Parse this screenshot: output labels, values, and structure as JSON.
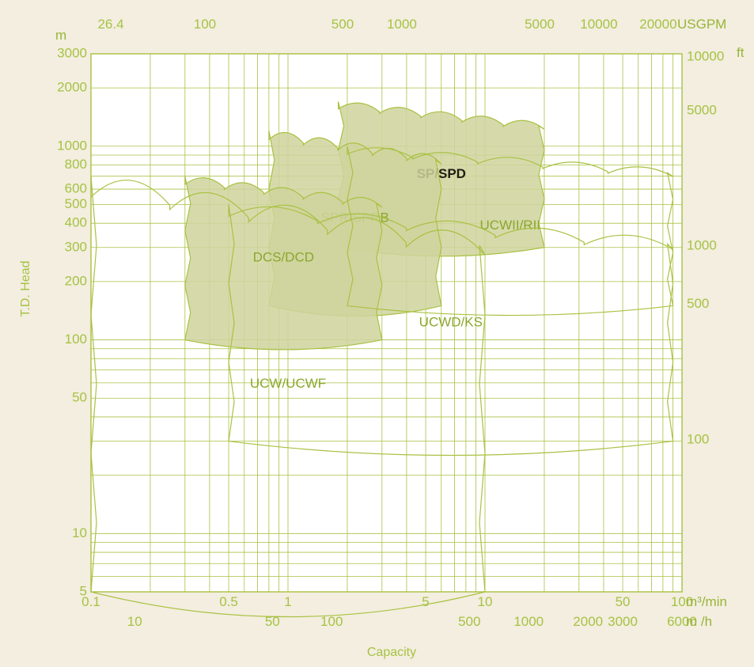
{
  "chart_data": {
    "type": "area",
    "x_axes": {
      "primary": {
        "unit": "m³/min",
        "scale": "log",
        "ticks": [
          "0.1",
          "0.5",
          "1",
          "5",
          "10",
          "50",
          "100"
        ]
      },
      "secondary": {
        "unit": "m /h",
        "ticks": [
          "10",
          "50",
          "100",
          "500",
          "1000",
          "2000",
          "3000",
          "6000"
        ]
      },
      "top": {
        "unit": "USGPM",
        "ticks": [
          "26.4",
          "100",
          "500",
          "1000",
          "5000",
          "10000",
          "20000"
        ]
      }
    },
    "y_axes": {
      "left": {
        "unit": "m",
        "scale": "log",
        "ticks": [
          "3000",
          "2000",
          "1000",
          "800",
          "600",
          "500",
          "400",
          "300",
          "200",
          "100",
          "50",
          "10",
          "5"
        ]
      },
      "right": {
        "unit": "ft",
        "ticks": [
          "10000",
          "5000",
          "1000",
          "500",
          "100"
        ]
      }
    },
    "xlabel": "Capacity",
    "ylabel": "T.D. Head",
    "xlim": [
      0.1,
      100
    ],
    "ylim": [
      5,
      3000
    ],
    "grid": true,
    "regions": [
      {
        "name": "SP/SPD",
        "shaded": true,
        "x_range": [
          1.8,
          20
        ],
        "y_range": [
          300,
          1700
        ]
      },
      {
        "name": "SPR/SPRB",
        "shaded": true,
        "x_range": [
          0.8,
          6
        ],
        "y_range": [
          150,
          1200
        ]
      },
      {
        "name": "DCS/DCD",
        "shaded": true,
        "x_range": [
          0.3,
          3
        ],
        "y_range": [
          100,
          700
        ]
      },
      {
        "name": "UCWII/RII",
        "shaded": false,
        "x_range": [
          2,
          90
        ],
        "y_range": [
          150,
          1000
        ]
      },
      {
        "name": "UCWD/KS",
        "shaded": false,
        "x_range": [
          0.5,
          90
        ],
        "y_range": [
          30,
          500
        ]
      },
      {
        "name": "UCW/UCWF",
        "shaded": false,
        "x_range": [
          0.1,
          10
        ],
        "y_range": [
          5,
          700
        ]
      }
    ],
    "colors": {
      "line": "#a9c142",
      "fill": "#cfd39c",
      "background": "#f3eedf",
      "plot": "#ffffff"
    }
  }
}
